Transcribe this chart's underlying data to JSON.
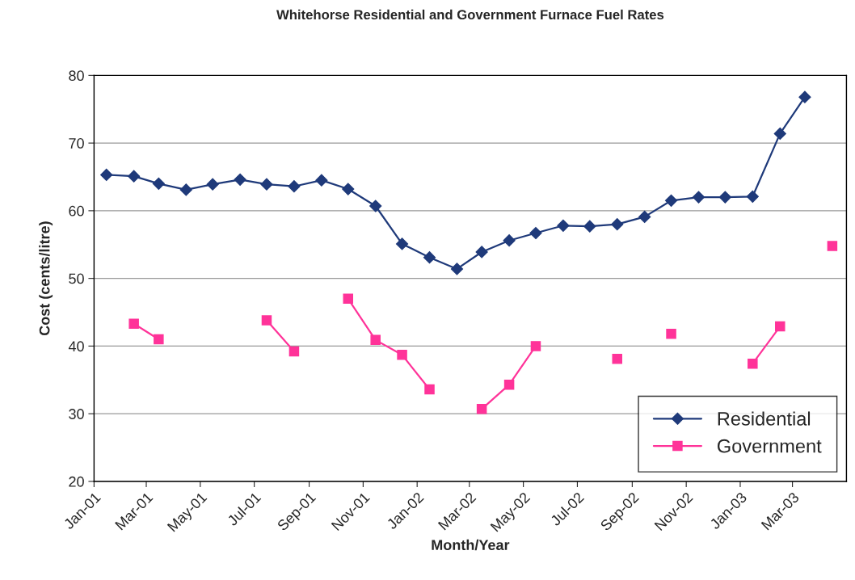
{
  "chart_data": {
    "type": "line",
    "title": "Whitehorse Residential and Government Furnace Fuel Rates",
    "xlabel": "Month/Year",
    "ylabel": "Cost (cents/litre)",
    "x": [
      "2001-01-15",
      "2001-02-15",
      "2001-03-15",
      "2001-04-15",
      "2001-05-15",
      "2001-06-15",
      "2001-07-15",
      "2001-08-15",
      "2001-09-15",
      "2001-10-15",
      "2001-11-15",
      "2001-12-15",
      "2002-01-15",
      "2002-02-15",
      "2002-03-15",
      "2002-04-15",
      "2002-05-15",
      "2002-06-15",
      "2002-07-15",
      "2002-08-15",
      "2002-09-15",
      "2002-10-15",
      "2002-11-15",
      "2002-12-15",
      "2003-01-15",
      "2003-02-15",
      "2003-03-15",
      "2003-04-15"
    ],
    "series": [
      {
        "name": "Residential",
        "color": "#1f3a7a",
        "marker": "diamond",
        "values": [
          65.3,
          65.1,
          64.0,
          63.1,
          63.9,
          64.6,
          63.9,
          63.6,
          64.5,
          63.2,
          60.7,
          55.1,
          53.1,
          51.4,
          53.9,
          55.6,
          56.7,
          57.8,
          57.7,
          58.0,
          59.1,
          61.5,
          62.0,
          62.0,
          62.1,
          71.4,
          76.8,
          null
        ]
      },
      {
        "name": "Government",
        "color": "#ff3399",
        "marker": "square",
        "values": [
          null,
          43.3,
          41.0,
          null,
          null,
          null,
          43.8,
          39.2,
          null,
          47.0,
          40.9,
          38.7,
          33.6,
          null,
          30.7,
          34.3,
          40.0,
          null,
          null,
          38.1,
          null,
          41.8,
          null,
          null,
          37.4,
          42.9,
          null,
          54.8
        ]
      }
    ],
    "xlim": [
      "2001-01-01",
      "2003-05-01"
    ],
    "xticks": [
      {
        "value": "2001-01",
        "label": "Jan-01"
      },
      {
        "value": "2001-03",
        "label": "Mar-01"
      },
      {
        "value": "2001-05",
        "label": "May-01"
      },
      {
        "value": "2001-07",
        "label": "Jul-01"
      },
      {
        "value": "2001-09",
        "label": "Sep-01"
      },
      {
        "value": "2001-11",
        "label": "Nov-01"
      },
      {
        "value": "2002-01",
        "label": "Jan-02"
      },
      {
        "value": "2002-03",
        "label": "Mar-02"
      },
      {
        "value": "2002-05",
        "label": "May-02"
      },
      {
        "value": "2002-07",
        "label": "Jul-02"
      },
      {
        "value": "2002-09",
        "label": "Sep-02"
      },
      {
        "value": "2002-11",
        "label": "Nov-02"
      },
      {
        "value": "2003-01",
        "label": "Jan-03"
      },
      {
        "value": "2003-03",
        "label": "Mar-03"
      }
    ],
    "ylim": [
      20,
      80
    ],
    "yticks": [
      20,
      30,
      40,
      50,
      60,
      70,
      80
    ],
    "grid": "y",
    "legend": "bottom right",
    "line_style": "solid"
  }
}
